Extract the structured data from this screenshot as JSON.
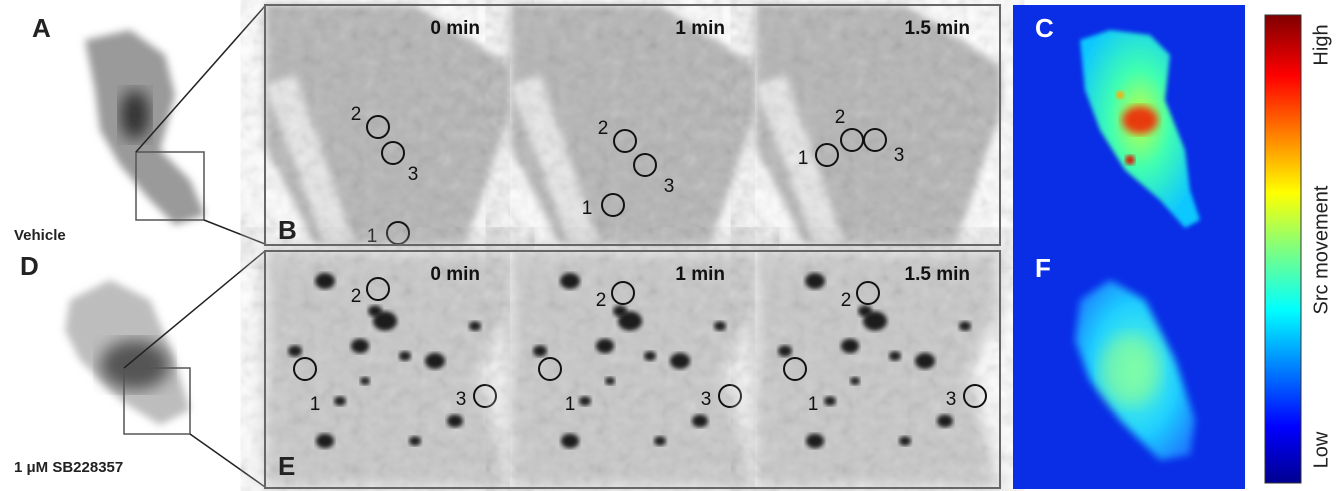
{
  "top_row": {
    "cell_label": "A",
    "treatment": "Vehicle",
    "zoom_label": "B",
    "frames": [
      {
        "time": "0 min",
        "markers": [
          "2",
          "3",
          "1"
        ]
      },
      {
        "time": "1 min",
        "markers": [
          "2",
          "3",
          "1"
        ]
      },
      {
        "time": "1.5 min",
        "markers": [
          "2",
          "3",
          "1"
        ]
      }
    ]
  },
  "bottom_row": {
    "cell_label": "D",
    "treatment": "1 μM SB228357",
    "zoom_label": "E",
    "frames": [
      {
        "time": "0 min",
        "markers": [
          "2",
          "1",
          "3"
        ]
      },
      {
        "time": "1 min",
        "markers": [
          "2",
          "1",
          "3"
        ]
      },
      {
        "time": "1.5 min",
        "markers": [
          "2",
          "1",
          "3"
        ]
      }
    ]
  },
  "heatmap_labels": [
    "C",
    "F"
  ],
  "colorbar": {
    "high": "High",
    "title": "Src movement",
    "low": "Low"
  }
}
